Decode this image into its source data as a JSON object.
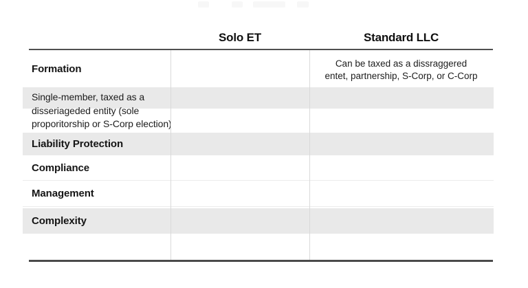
{
  "table": {
    "header": {
      "col2": "Solo ET",
      "col3": "Standard LLC"
    },
    "rows": [
      {
        "label": "Formation",
        "standard_llc_lines": [
          "Can be taxed as a dissraggered",
          "entet, partnership, S-Corp, or C-Corp"
        ]
      },
      {
        "label_lines": [
          "Single-member, taxed as a",
          "disseriageded entity (sole",
          "proporitorship or S-Corp election)"
        ]
      },
      {
        "label": "Liability Protection"
      },
      {
        "label": "Compliance"
      },
      {
        "label": "Management"
      },
      {
        "label": "Complexity"
      },
      {
        "label": ""
      }
    ]
  },
  "colors": {
    "stripe": "#e9e9e9",
    "rule": "#4f4f4f",
    "grid": "#d9d9d9",
    "text": "#141414"
  },
  "chart_data": {
    "type": "table",
    "columns": [
      "",
      "Solo ET",
      "Standard LLC"
    ],
    "rows": [
      [
        "Formation",
        "",
        "Can be taxed as a dissraggered entet, partnership, S-Corp, or C-Corp"
      ],
      [
        "Single-member, taxed as a disseriageded entity (sole proporitorship or S-Corp election)",
        "",
        ""
      ],
      [
        "Liability Protection",
        "",
        ""
      ],
      [
        "Compliance",
        "",
        ""
      ],
      [
        "Management",
        "",
        ""
      ],
      [
        "Complexity",
        "",
        ""
      ],
      [
        "",
        "",
        ""
      ]
    ],
    "layout": "striped comparison table, dark top and bottom rules, light vertical column dividers"
  }
}
